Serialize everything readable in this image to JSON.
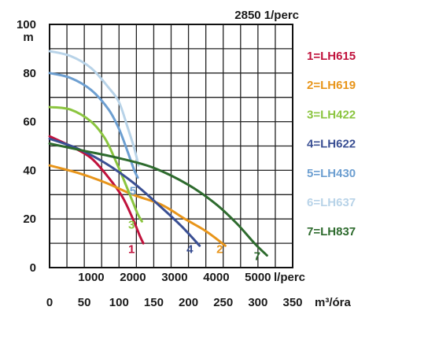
{
  "chart_data": {
    "type": "line",
    "title": "2850 1/perc",
    "y_axis": {
      "label": "m",
      "min": 0,
      "max": 100,
      "ticks": [
        0,
        20,
        40,
        60,
        80,
        100
      ]
    },
    "x_axis_lpm": {
      "label": "l/perc",
      "ticks": [
        1000,
        2000,
        3000,
        4000,
        5000
      ]
    },
    "x_axis_m3h": {
      "label": "m³/óra",
      "min": 0,
      "max": 350,
      "ticks": [
        0,
        50,
        100,
        150,
        200,
        250,
        300,
        350
      ]
    },
    "grid": true,
    "legend_position": "right",
    "series": [
      {
        "id": "1",
        "name": "1=LH615",
        "color": "#c0123c",
        "points": [
          [
            0,
            54
          ],
          [
            30,
            50
          ],
          [
            60,
            45
          ],
          [
            85,
            37
          ],
          [
            105,
            29
          ],
          [
            120,
            20
          ],
          [
            130,
            13
          ],
          [
            135,
            10
          ]
        ]
      },
      {
        "id": "2",
        "name": "2=LH619",
        "color": "#e8951a",
        "points": [
          [
            0,
            42
          ],
          [
            40,
            39
          ],
          [
            80,
            35
          ],
          [
            120,
            30
          ],
          [
            160,
            26
          ],
          [
            195,
            20
          ],
          [
            225,
            15
          ],
          [
            253,
            9
          ]
        ]
      },
      {
        "id": "3",
        "name": "3=LH422",
        "color": "#8bc53f",
        "points": [
          [
            0,
            66
          ],
          [
            30,
            65
          ],
          [
            60,
            60
          ],
          [
            80,
            53
          ],
          [
            95,
            44
          ],
          [
            107,
            36
          ],
          [
            117,
            29
          ],
          [
            127,
            22
          ],
          [
            133,
            19
          ]
        ]
      },
      {
        "id": "4",
        "name": "4=LH622",
        "color": "#3a4f93",
        "points": [
          [
            0,
            53
          ],
          [
            40,
            49
          ],
          [
            80,
            43
          ],
          [
            120,
            35
          ],
          [
            160,
            25
          ],
          [
            190,
            17
          ],
          [
            216,
            9
          ]
        ]
      },
      {
        "id": "5",
        "name": "5=LH430",
        "color": "#6d9fd1",
        "points": [
          [
            0,
            80
          ],
          [
            30,
            78
          ],
          [
            60,
            73
          ],
          [
            85,
            65
          ],
          [
            100,
            57
          ],
          [
            112,
            48
          ],
          [
            122,
            40
          ],
          [
            127,
            37
          ]
        ]
      },
      {
        "id": "6",
        "name": "6=LH637",
        "color": "#b8d3e8",
        "points": [
          [
            0,
            89
          ],
          [
            30,
            87
          ],
          [
            60,
            82
          ],
          [
            85,
            74
          ],
          [
            100,
            68
          ],
          [
            112,
            58
          ],
          [
            122,
            49
          ],
          [
            128,
            42
          ]
        ]
      },
      {
        "id": "7",
        "name": "7=LH837",
        "color": "#2e6b2e",
        "points": [
          [
            0,
            51
          ],
          [
            50,
            48
          ],
          [
            100,
            45
          ],
          [
            150,
            41
          ],
          [
            200,
            34
          ],
          [
            240,
            26
          ],
          [
            270,
            18
          ],
          [
            295,
            10
          ],
          [
            313,
            5
          ]
        ]
      }
    ],
    "curve_labels": [
      {
        "id": "1",
        "text": "1",
        "color": "#c0123c",
        "x": 118,
        "y": 6
      },
      {
        "id": "2",
        "text": "2",
        "color": "#e8951a",
        "x": 245,
        "y": 6
      },
      {
        "id": "3",
        "text": "3",
        "color": "#8bc53f",
        "x": 118,
        "y": 16
      },
      {
        "id": "4",
        "text": "4",
        "color": "#3a4f93",
        "x": 202,
        "y": 6
      },
      {
        "id": "5",
        "text": "5",
        "color": "#6d9fd1",
        "x": 120,
        "y": 30
      },
      {
        "id": "7",
        "text": "7",
        "color": "#2e6b2e",
        "x": 299,
        "y": 3
      }
    ]
  }
}
